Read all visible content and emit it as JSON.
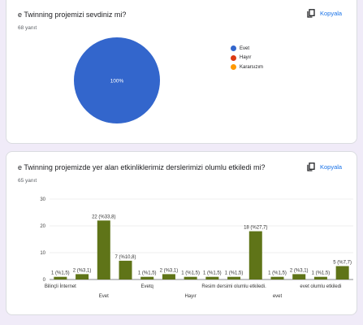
{
  "card1": {
    "question": "e Twinning projemizi sevdiniz mi?",
    "response_count": "68 yanıt",
    "copy_label": "Kopyala",
    "pie_slice_label": "100%",
    "legend": [
      {
        "label": "Evet",
        "color": "#3366cc"
      },
      {
        "label": "Hayır",
        "color": "#dc3912"
      },
      {
        "label": "Kararsızım",
        "color": "#ff9900"
      }
    ]
  },
  "card2": {
    "question": "e Twinning projemizde yer alan etkinliklerimiz derslerimizi olumlu etkiledi mi?",
    "response_count": "65 yanıt",
    "copy_label": "Kopyala"
  },
  "chart_data": [
    {
      "type": "pie",
      "slices": [
        {
          "label": "Evet",
          "value": 100,
          "color": "#3366cc"
        },
        {
          "label": "Hayır",
          "value": 0,
          "color": "#dc3912"
        },
        {
          "label": "Kararsızım",
          "value": 0,
          "color": "#ff9900"
        }
      ],
      "data_labels": [
        "100%"
      ],
      "legend_position": "right"
    },
    {
      "type": "bar",
      "bar_color": "#5f7418",
      "ylim": [
        0,
        30
      ],
      "yticks": [
        "0",
        "10",
        "20",
        "30"
      ],
      "grid": true,
      "categories": [
        "Bilinçli İnternet",
        "",
        "Evet",
        "",
        "Evetq",
        "",
        "Hayır",
        "",
        "Resim dersimi olumlu etkiledi.",
        "",
        "evet",
        "",
        "evet olumlu etkiledi",
        ""
      ],
      "visible_tick_labels": [
        "Bilinçli İnternet",
        "Evet",
        "Evetq",
        "Hayır",
        "Resim dersimi olumlu etkiledi.",
        "evet",
        "evet olumlu etkiledi"
      ],
      "values": [
        1,
        2,
        22,
        7,
        1,
        2,
        1,
        1,
        1,
        18,
        1,
        2,
        1,
        5
      ],
      "data_labels": [
        "1 (%1,5)",
        "2 (%3,1)",
        "22 (%33,8)",
        "7 (%10,8)",
        "1 (%1,5)",
        "2 (%3,1)",
        "1 (%1,5)",
        "1 (%1,5)",
        "1 (%1,5)",
        "18 (%27,7)",
        "1 (%1,5)",
        "2 (%3,1)",
        "1 (%1,5)",
        "5 (%7,7)"
      ]
    }
  ]
}
